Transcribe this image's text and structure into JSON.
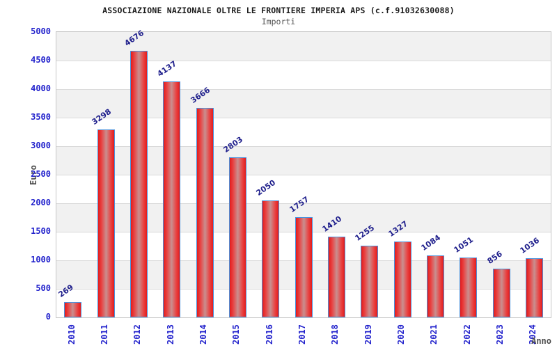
{
  "chart": {
    "title": "ASSOCIAZIONE NAZIONALE OLTRE LE FRONTIERE IMPERIA APS (c.f.91032630088)",
    "subtitle": "Importi",
    "ylabel": "Euro",
    "xlabel": "Anno"
  },
  "chart_data": {
    "type": "bar",
    "title": "ASSOCIAZIONE NAZIONALE OLTRE LE FRONTIERE IMPERIA APS (c.f.91032630088)",
    "subtitle": "Importi",
    "xlabel": "Anno",
    "ylabel": "Euro",
    "categories": [
      "2010",
      "2011",
      "2012",
      "2013",
      "2014",
      "2015",
      "2016",
      "2017",
      "2018",
      "2019",
      "2020",
      "2021",
      "2022",
      "2023",
      "2024"
    ],
    "values": [
      269,
      3298,
      4676,
      4137,
      3666,
      2803,
      2050,
      1757,
      1410,
      1255,
      1327,
      1084,
      1051,
      856,
      1036
    ],
    "ylim": [
      0,
      5000
    ],
    "ytick_step": 500,
    "grid": true,
    "legend_position": "none",
    "value_labels_shown": true,
    "value_label_angle_deg": 35,
    "xtick_angle_deg": 90
  },
  "style": {
    "title_color": "#1a1a1a",
    "subtitle_color": "#555555",
    "axis_tick_color": "#2222cc",
    "value_label_color": "#1f1f8c",
    "axis_title_color": "#4d4d4d",
    "bar_fill_edge": "#e31b1b",
    "bar_fill_bright": "#e84545",
    "bar_fill_mid": "#c98f8f",
    "bar_border": "#4a92dd",
    "band_gray": "#f1f1f1",
    "band_white": "#ffffff",
    "gridline_color": "#dadada",
    "frame_border": "#c6c6c6",
    "background": "#ffffff"
  }
}
